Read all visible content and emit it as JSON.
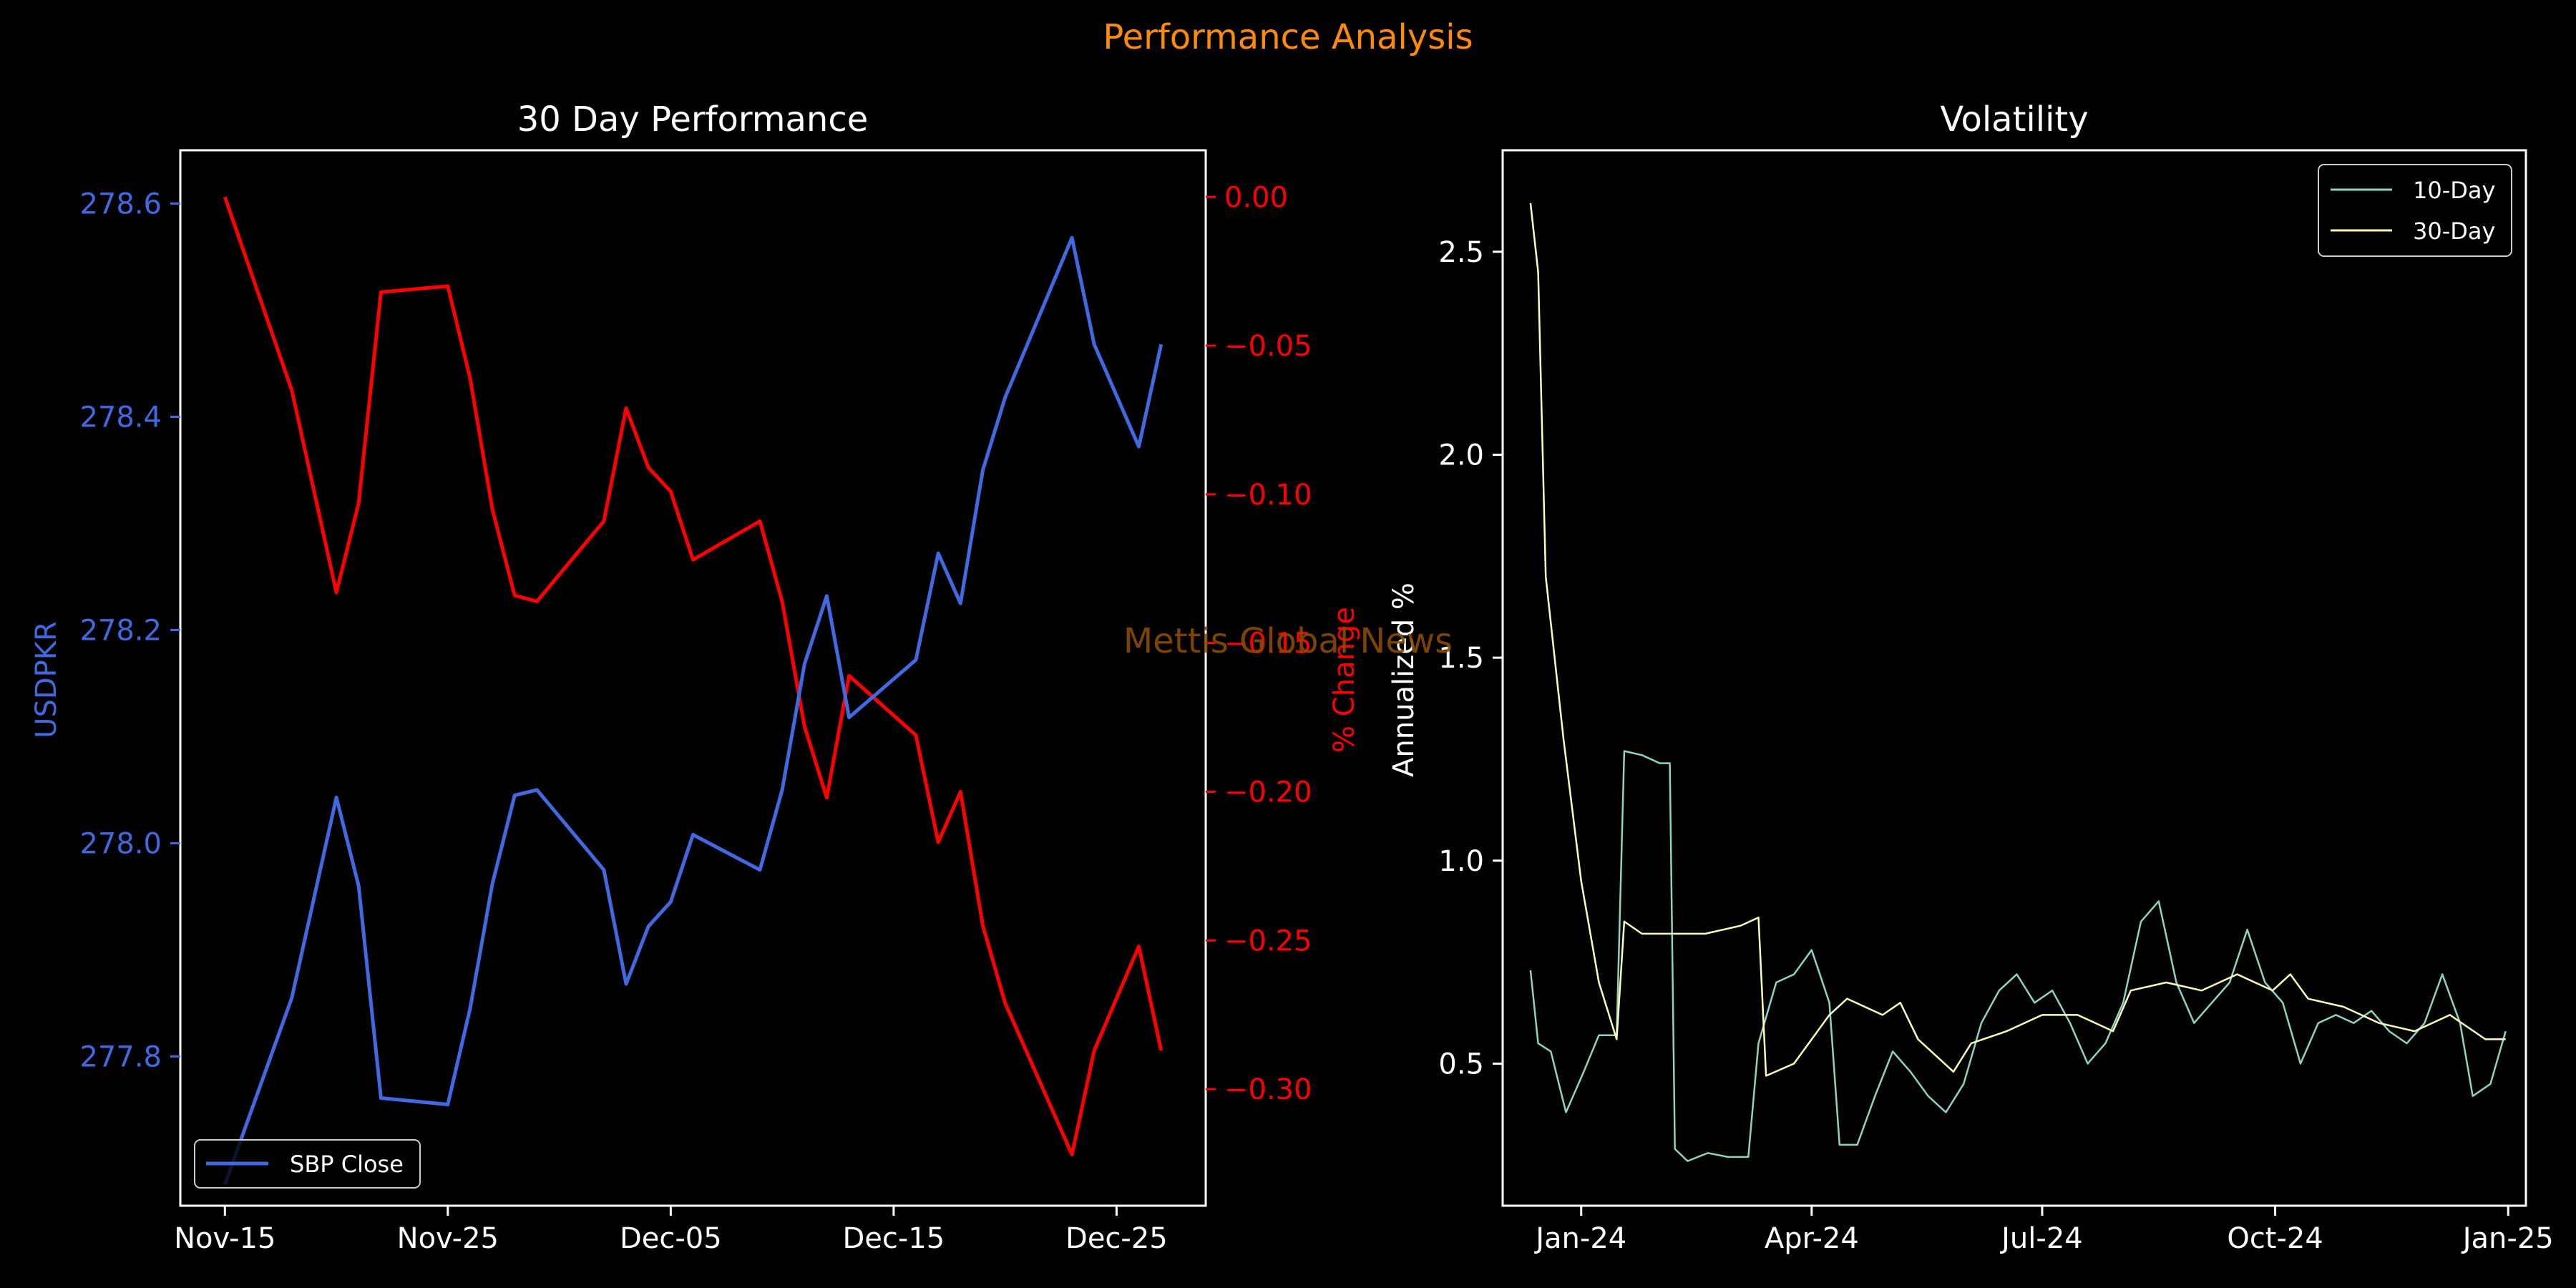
{
  "suptitle": "Performance Analysis",
  "watermark": "Mettis Global News",
  "colors": {
    "background": "#000000",
    "suptitle": "#ff8c00",
    "watermark": "#8b4a00",
    "price_series": "#4169e1",
    "pct_series": "#ff0000",
    "vol10": "#8dd3c7",
    "vol30": "#ffffb3",
    "axis": "#ffffff"
  },
  "chart_data": [
    {
      "type": "line",
      "title": "30 Day Performance",
      "xlabel": "",
      "ylabel": "USDPKR",
      "y2label": "% Change",
      "x_ticks": [
        "Nov-15",
        "Nov-25",
        "Dec-05",
        "Dec-15",
        "Dec-25"
      ],
      "y_ticks": [
        "278.6",
        "278.4",
        "278.2",
        "278.0",
        "277.8"
      ],
      "y2_ticks": [
        "0.00",
        "−0.05",
        "−0.10",
        "−0.15",
        "−0.20",
        "−0.25",
        "−0.30"
      ],
      "xlim": [
        "2024-11-13",
        "2024-12-29"
      ],
      "ylim": [
        277.66,
        278.65
      ],
      "y2lim": [
        -0.3392,
        0.0157
      ],
      "x": [
        "2024-11-15",
        "2024-11-18",
        "2024-11-20",
        "2024-11-21",
        "2024-11-22",
        "2024-11-25",
        "2024-11-26",
        "2024-11-27",
        "2024-11-28",
        "2024-11-29",
        "2024-12-02",
        "2024-12-03",
        "2024-12-04",
        "2024-12-05",
        "2024-12-06",
        "2024-12-09",
        "2024-12-10",
        "2024-12-11",
        "2024-12-12",
        "2024-12-13",
        "2024-12-16",
        "2024-12-17",
        "2024-12-18",
        "2024-12-19",
        "2024-12-20",
        "2024-12-23",
        "2024-12-24",
        "2024-12-26",
        "2024-12-27"
      ],
      "series": [
        {
          "name": "SBP Close",
          "axis": "left",
          "values": [
            277.68,
            277.855,
            278.043,
            277.96,
            277.761,
            277.755,
            277.845,
            277.962,
            278.045,
            278.05,
            277.975,
            277.868,
            277.922,
            277.945,
            278.008,
            277.975,
            278.05,
            278.168,
            278.232,
            278.118,
            278.172,
            278.272,
            278.225,
            278.35,
            278.418,
            278.568,
            278.468,
            278.372,
            278.468
          ]
        },
        {
          "axis": "right",
          "values": [
            0.0,
            -0.065,
            -0.133,
            -0.103,
            -0.032,
            -0.03,
            -0.061,
            -0.105,
            -0.134,
            -0.136,
            -0.109,
            -0.071,
            -0.091,
            -0.099,
            -0.122,
            -0.109,
            -0.136,
            -0.178,
            -0.202,
            -0.161,
            -0.181,
            -0.217,
            -0.2,
            -0.245,
            -0.271,
            -0.322,
            -0.287,
            -0.252,
            -0.287
          ]
        }
      ],
      "legend": "lower-left",
      "grid": false
    },
    {
      "type": "line",
      "title": "Volatility",
      "xlabel": "",
      "ylabel": "Annualized %",
      "x_ticks": [
        "Jan-24",
        "Apr-24",
        "Jul-24",
        "Oct-24",
        "Jan-25"
      ],
      "y_ticks": [
        "2.5",
        "2.0",
        "1.5",
        "1.0",
        "0.5"
      ],
      "xlim": [
        "2023-12-01",
        "2025-01-08"
      ],
      "ylim": [
        0.15,
        2.75
      ],
      "series": [
        {
          "name": "10-Day",
          "points": [
            [
              "2023-12-12",
              0.73
            ],
            [
              "2023-12-15",
              0.55
            ],
            [
              "2023-12-20",
              0.53
            ],
            [
              "2023-12-26",
              0.38
            ],
            [
              "2024-01-02",
              0.48
            ],
            [
              "2024-01-08",
              0.57
            ],
            [
              "2024-01-15",
              0.57
            ],
            [
              "2024-01-18",
              1.27
            ],
            [
              "2024-01-25",
              1.26
            ],
            [
              "2024-02-01",
              1.24
            ],
            [
              "2024-02-05",
              1.24
            ],
            [
              "2024-02-07",
              0.29
            ],
            [
              "2024-02-12",
              0.26
            ],
            [
              "2024-02-20",
              0.28
            ],
            [
              "2024-02-28",
              0.27
            ],
            [
              "2024-03-07",
              0.27
            ],
            [
              "2024-03-11",
              0.55
            ],
            [
              "2024-03-18",
              0.7
            ],
            [
              "2024-03-25",
              0.72
            ],
            [
              "2024-04-01",
              0.78
            ],
            [
              "2024-04-08",
              0.65
            ],
            [
              "2024-04-12",
              0.3
            ],
            [
              "2024-04-19",
              0.3
            ],
            [
              "2024-04-26",
              0.42
            ],
            [
              "2024-05-03",
              0.53
            ],
            [
              "2024-05-10",
              0.48
            ],
            [
              "2024-05-17",
              0.42
            ],
            [
              "2024-05-24",
              0.38
            ],
            [
              "2024-05-31",
              0.45
            ],
            [
              "2024-06-07",
              0.6
            ],
            [
              "2024-06-14",
              0.68
            ],
            [
              "2024-06-21",
              0.72
            ],
            [
              "2024-06-28",
              0.65
            ],
            [
              "2024-07-05",
              0.68
            ],
            [
              "2024-07-12",
              0.6
            ],
            [
              "2024-07-19",
              0.5
            ],
            [
              "2024-07-26",
              0.55
            ],
            [
              "2024-08-02",
              0.65
            ],
            [
              "2024-08-09",
              0.85
            ],
            [
              "2024-08-16",
              0.9
            ],
            [
              "2024-08-23",
              0.7
            ],
            [
              "2024-08-30",
              0.6
            ],
            [
              "2024-09-06",
              0.65
            ],
            [
              "2024-09-13",
              0.7
            ],
            [
              "2024-09-20",
              0.83
            ],
            [
              "2024-09-27",
              0.7
            ],
            [
              "2024-10-04",
              0.65
            ],
            [
              "2024-10-11",
              0.5
            ],
            [
              "2024-10-18",
              0.6
            ],
            [
              "2024-10-25",
              0.62
            ],
            [
              "2024-11-01",
              0.6
            ],
            [
              "2024-11-08",
              0.63
            ],
            [
              "2024-11-15",
              0.58
            ],
            [
              "2024-11-22",
              0.55
            ],
            [
              "2024-11-29",
              0.6
            ],
            [
              "2024-12-06",
              0.72
            ],
            [
              "2024-12-13",
              0.6
            ],
            [
              "2024-12-18",
              0.42
            ],
            [
              "2024-12-25",
              0.45
            ],
            [
              "2024-12-31",
              0.58
            ]
          ]
        },
        {
          "name": "30-Day",
          "points": [
            [
              "2023-12-12",
              2.62
            ],
            [
              "2023-12-15",
              2.45
            ],
            [
              "2023-12-18",
              1.7
            ],
            [
              "2023-12-25",
              1.3
            ],
            [
              "2024-01-01",
              0.95
            ],
            [
              "2024-01-08",
              0.7
            ],
            [
              "2024-01-15",
              0.56
            ],
            [
              "2024-01-18",
              0.85
            ],
            [
              "2024-01-25",
              0.82
            ],
            [
              "2024-02-05",
              0.82
            ],
            [
              "2024-02-19",
              0.82
            ],
            [
              "2024-03-04",
              0.84
            ],
            [
              "2024-03-11",
              0.86
            ],
            [
              "2024-03-14",
              0.47
            ],
            [
              "2024-03-25",
              0.5
            ],
            [
              "2024-04-08",
              0.62
            ],
            [
              "2024-04-15",
              0.66
            ],
            [
              "2024-04-29",
              0.62
            ],
            [
              "2024-05-06",
              0.65
            ],
            [
              "2024-05-13",
              0.56
            ],
            [
              "2024-05-27",
              0.48
            ],
            [
              "2024-06-03",
              0.55
            ],
            [
              "2024-06-17",
              0.58
            ],
            [
              "2024-07-01",
              0.62
            ],
            [
              "2024-07-15",
              0.62
            ],
            [
              "2024-07-29",
              0.58
            ],
            [
              "2024-08-05",
              0.68
            ],
            [
              "2024-08-19",
              0.7
            ],
            [
              "2024-09-02",
              0.68
            ],
            [
              "2024-09-16",
              0.72
            ],
            [
              "2024-09-30",
              0.68
            ],
            [
              "2024-10-07",
              0.72
            ],
            [
              "2024-10-14",
              0.66
            ],
            [
              "2024-10-28",
              0.64
            ],
            [
              "2024-11-11",
              0.6
            ],
            [
              "2024-11-25",
              0.58
            ],
            [
              "2024-12-09",
              0.62
            ],
            [
              "2024-12-23",
              0.56
            ],
            [
              "2024-12-31",
              0.56
            ]
          ]
        }
      ],
      "legend": "upper-right",
      "grid": false
    }
  ]
}
